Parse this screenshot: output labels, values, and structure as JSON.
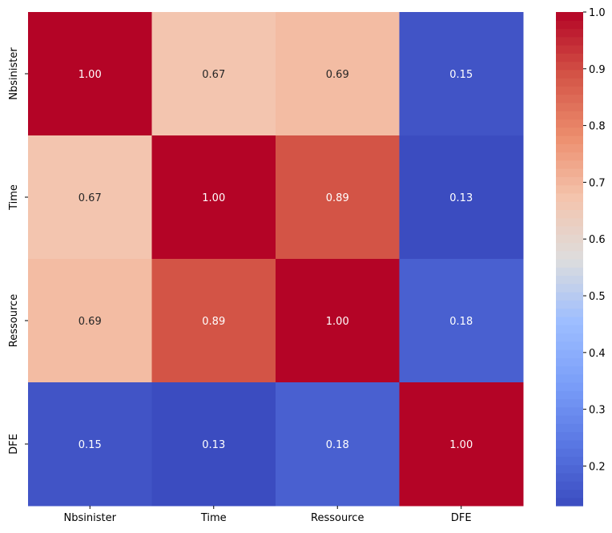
{
  "chart_data": {
    "type": "heatmap",
    "title": "",
    "xlabel": "",
    "ylabel": "",
    "row_labels": [
      "Nbsinister",
      "Time",
      "Ressource",
      "DFE"
    ],
    "col_labels": [
      "Nbsinister",
      "Time",
      "Ressource",
      "DFE"
    ],
    "values": [
      [
        1.0,
        0.67,
        0.69,
        0.15
      ],
      [
        0.67,
        1.0,
        0.89,
        0.13
      ],
      [
        0.69,
        0.89,
        1.0,
        0.18
      ],
      [
        0.15,
        0.13,
        0.18,
        1.0
      ]
    ],
    "cell_labels": [
      [
        "1.00",
        "0.67",
        "0.69",
        "0.15"
      ],
      [
        "0.67",
        "1.00",
        "0.89",
        "0.13"
      ],
      [
        "0.69",
        "0.89",
        "1.00",
        "0.18"
      ],
      [
        "0.15",
        "0.13",
        "0.18",
        "1.00"
      ]
    ],
    "colormap": "coolwarm",
    "colorbar": {
      "range": [
        0.13,
        1.0
      ],
      "ticks": [
        0.2,
        0.3,
        0.4,
        0.5,
        0.6,
        0.7,
        0.8,
        0.9,
        1.0
      ],
      "tick_labels": [
        "0.2",
        "0.3",
        "0.4",
        "0.5",
        "0.6",
        "0.7",
        "0.8",
        "0.9",
        "1.0"
      ]
    }
  }
}
